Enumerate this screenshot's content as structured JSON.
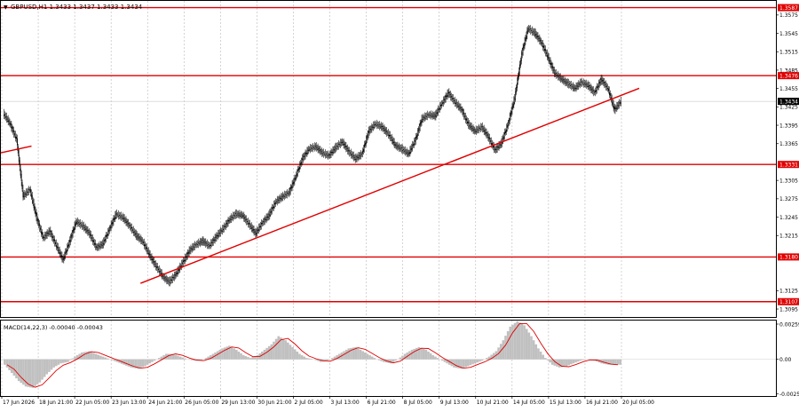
{
  "header": {
    "menu_glyph": "▼",
    "title": "GBPUSD,H1 1.3433 1.3437 1.3433 1.3434"
  },
  "chart_data": [
    {
      "type": "candlestick",
      "symbol": "GBPUSD",
      "timeframe": "H1",
      "ohlc_current": {
        "open": 1.3433,
        "high": 1.3437,
        "low": 1.3433,
        "close": 1.3434
      },
      "ylim": [
        1.3082,
        1.3598
      ],
      "y_ticks": [
        "1.3575",
        "1.3545",
        "1.3515",
        "1.3485",
        "1.3455",
        "1.3425",
        "1.3395",
        "1.3365",
        "1.3305",
        "1.3275",
        "1.3245",
        "1.3215",
        "1.3125",
        "1.3095"
      ],
      "x_ticks": [
        "17 Jun 2026",
        "18 Jun 21:00",
        "22 Jun 05:00",
        "23 Jun 13:00",
        "24 Jun 21:00",
        "26 Jun 05:00",
        "29 Jun 13:00",
        "30 Jun 21:00",
        "2 Jul 05:00",
        "3 Jul 13:00",
        "6 Jul 21:00",
        "8 Jul 05:00",
        "9 Jul 13:00",
        "10 Jul 21:00",
        "14 Jul 05:00",
        "15 Jul 13:00",
        "16 Jul 21:00",
        "20 Jul 05:00"
      ],
      "current_price": "1.3434",
      "levels": [
        {
          "price": 1.3587,
          "label": "1.3587"
        },
        {
          "price": 1.3476,
          "label": "1.3476"
        },
        {
          "price": 1.3331,
          "label": "1.3331"
        },
        {
          "price": 1.318,
          "label": "1.3180"
        },
        {
          "price": 1.3107,
          "label": "1.3107"
        }
      ],
      "trendlines": [
        {
          "from": [
            "17 Jun 2026",
            1.335
          ],
          "to": [
            "18 Jun 21:00",
            1.3361
          ]
        },
        {
          "from": [
            "24 Jun 21:00",
            1.3137
          ],
          "to": [
            "20 Jul 05:00",
            1.3444
          ]
        }
      ],
      "series_path": [
        [
          1.3414,
          1.3398
        ],
        [
          1.3398,
          1.3372
        ],
        [
          1.3372,
          1.3279
        ],
        [
          1.3279,
          1.329
        ],
        [
          1.329,
          1.3245
        ],
        [
          1.3245,
          1.3211
        ],
        [
          1.3211,
          1.3222
        ],
        [
          1.3222,
          1.3198
        ],
        [
          1.3198,
          1.3175
        ],
        [
          1.3175,
          1.3206
        ],
        [
          1.3206,
          1.3238
        ],
        [
          1.3238,
          1.323
        ],
        [
          1.323,
          1.3218
        ],
        [
          1.3218,
          1.3195
        ],
        [
          1.3195,
          1.3201
        ],
        [
          1.3201,
          1.3226
        ],
        [
          1.3226,
          1.325
        ],
        [
          1.325,
          1.3244
        ],
        [
          1.3244,
          1.3231
        ],
        [
          1.3231,
          1.3215
        ],
        [
          1.3215,
          1.3205
        ],
        [
          1.3205,
          1.3183
        ],
        [
          1.3183,
          1.3165
        ],
        [
          1.3165,
          1.3148
        ],
        [
          1.3148,
          1.3139
        ],
        [
          1.3139,
          1.3152
        ],
        [
          1.3152,
          1.317
        ],
        [
          1.317,
          1.319
        ],
        [
          1.319,
          1.32
        ],
        [
          1.32,
          1.3206
        ],
        [
          1.3206,
          1.3198
        ],
        [
          1.3198,
          1.3212
        ],
        [
          1.3212,
          1.3225
        ],
        [
          1.3225,
          1.324
        ],
        [
          1.324,
          1.325
        ],
        [
          1.325,
          1.3248
        ],
        [
          1.3248,
          1.3233
        ],
        [
          1.3233,
          1.3218
        ],
        [
          1.3218,
          1.3236
        ],
        [
          1.3236,
          1.3248
        ],
        [
          1.3248,
          1.327
        ],
        [
          1.327,
          1.3278
        ],
        [
          1.3278,
          1.3285
        ],
        [
          1.3285,
          1.331
        ],
        [
          1.331,
          1.334
        ],
        [
          1.334,
          1.3356
        ],
        [
          1.3356,
          1.336
        ],
        [
          1.336,
          1.335
        ],
        [
          1.335,
          1.3345
        ],
        [
          1.3345,
          1.3358
        ],
        [
          1.3358,
          1.3368
        ],
        [
          1.3368,
          1.3352
        ],
        [
          1.3352,
          1.334
        ],
        [
          1.334,
          1.3348
        ],
        [
          1.3348,
          1.3385
        ],
        [
          1.3385,
          1.3397
        ],
        [
          1.3397,
          1.3392
        ],
        [
          1.3392,
          1.338
        ],
        [
          1.338,
          1.3362
        ],
        [
          1.3362,
          1.3356
        ],
        [
          1.3356,
          1.3348
        ],
        [
          1.3348,
          1.337
        ],
        [
          1.337,
          1.3405
        ],
        [
          1.3405,
          1.3412
        ],
        [
          1.3412,
          1.341
        ],
        [
          1.341,
          1.343
        ],
        [
          1.343,
          1.3448
        ],
        [
          1.3448,
          1.3432
        ],
        [
          1.3432,
          1.342
        ],
        [
          1.342,
          1.3396
        ],
        [
          1.3396,
          1.3385
        ],
        [
          1.3385,
          1.3392
        ],
        [
          1.3392,
          1.3376
        ],
        [
          1.3376,
          1.3354
        ],
        [
          1.3354,
          1.3366
        ],
        [
          1.3366,
          1.3398
        ],
        [
          1.3398,
          1.344
        ],
        [
          1.344,
          1.351
        ],
        [
          1.351,
          1.3553
        ],
        [
          1.3553,
          1.3545
        ],
        [
          1.3545,
          1.353
        ],
        [
          1.353,
          1.3505
        ],
        [
          1.3505,
          1.348
        ],
        [
          1.348,
          1.347
        ],
        [
          1.347,
          1.3463
        ],
        [
          1.3463,
          1.3455
        ],
        [
          1.3455,
          1.3465
        ],
        [
          1.3465,
          1.346
        ],
        [
          1.346,
          1.3448
        ],
        [
          1.3448,
          1.347
        ],
        [
          1.347,
          1.3455
        ],
        [
          1.3455,
          1.342
        ],
        [
          1.342,
          1.3434
        ]
      ]
    },
    {
      "type": "histogram",
      "indicator": "MACD",
      "label": "MACD(14,22,3) -0.00040 -0.00043",
      "ylim": [
        -0.0027,
        0.00285
      ],
      "y_ticks": [
        "0.00259",
        "0.00",
        "-0.00255"
      ],
      "values": [
        -0.0004,
        -0.001,
        -0.0016,
        -0.002,
        -0.0021,
        -0.0017,
        -0.0011,
        -0.0006,
        -0.0003,
        -0.0002,
        0.0002,
        0.0005,
        0.0006,
        0.0004,
        0.0002,
        0.0,
        -0.0002,
        -0.0004,
        -0.0006,
        -0.0007,
        -0.0005,
        -0.0002,
        0.0001,
        0.0004,
        0.0004,
        0.0002,
        0.0,
        -0.0001,
        -0.0001,
        0.0002,
        0.0005,
        0.0008,
        0.001,
        0.0007,
        0.0003,
        0.0001,
        0.0003,
        0.0007,
        0.0011,
        0.0017,
        0.0014,
        0.0009,
        0.0004,
        0.0001,
        0.0,
        -0.0002,
        -0.0001,
        0.0002,
        0.0005,
        0.0008,
        0.0009,
        0.0006,
        0.0003,
        0.0,
        -0.0002,
        -0.0003,
        0.0,
        0.0004,
        0.0007,
        0.0009,
        0.0007,
        0.0003,
        0.0,
        -0.0003,
        -0.0006,
        -0.0007,
        -0.0005,
        -0.0003,
        -0.0001,
        0.0002,
        0.0006,
        0.0014,
        0.0024,
        0.0028,
        0.0025,
        0.0017,
        0.0008,
        0.0001,
        -0.0004,
        -0.0006,
        -0.0005,
        -0.0003,
        -0.0001,
        0.0,
        -0.0001,
        -0.0003,
        -0.0004,
        -0.0004
      ]
    }
  ],
  "colors": {
    "background": "#ffffff",
    "candle": "#000000",
    "level_line": "#e00000",
    "trend_line": "#e00000",
    "grid": "#b8b8b8",
    "histogram": "#c0c0c0",
    "signal_line": "#e00000",
    "price_tag_bg": "#000000",
    "price_tag_fg": "#ffffff"
  }
}
